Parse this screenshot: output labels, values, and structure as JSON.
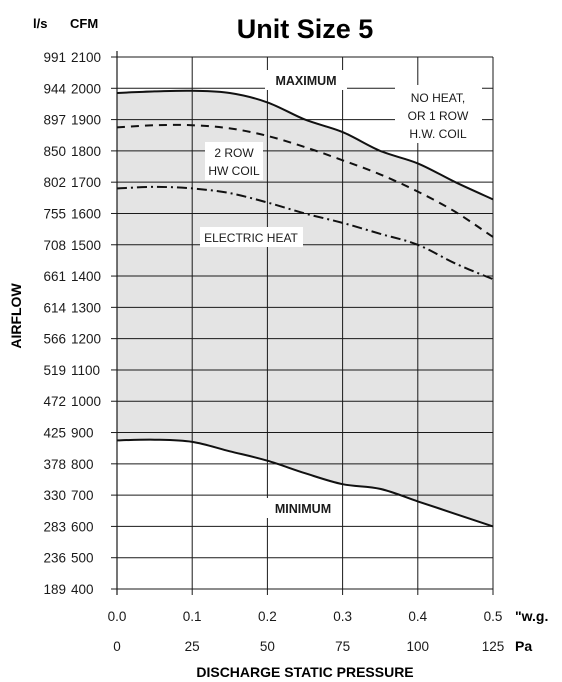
{
  "chart_data": {
    "type": "area",
    "title": "Unit Size 5",
    "ylabel": "AIRFLOW",
    "xlabel": "DISCHARGE STATIC PRESSURE",
    "y_unit_left": "l/s",
    "y_unit_right": "CFM",
    "x_unit_primary": "\"w.g.",
    "x_unit_secondary": "Pa",
    "xlim": [
      0,
      0.5
    ],
    "ylim": [
      400,
      2100
    ],
    "x_ticks_wg": [
      "0.0",
      "0.1",
      "0.2",
      "0.3",
      "0.4",
      "0.5"
    ],
    "x_ticks_pa": [
      "0",
      "25",
      "50",
      "75",
      "100",
      "125"
    ],
    "y_ticks_cfm": [
      "2100",
      "2000",
      "1900",
      "1800",
      "1700",
      "1600",
      "1500",
      "1400",
      "1300",
      "1200",
      "1100",
      "1000",
      "900",
      "800",
      "700",
      "600",
      "500",
      "400"
    ],
    "y_ticks_ls": [
      "991",
      "944",
      "897",
      "850",
      "802",
      "755",
      "708",
      "661",
      "614",
      "566",
      "519",
      "472",
      "425",
      "378",
      "330",
      "283",
      "236",
      "189"
    ],
    "series": [
      {
        "name": "MAXIMUM",
        "style": "solid",
        "x": [
          0.0,
          0.05,
          0.1,
          0.15,
          0.2,
          0.25,
          0.3,
          0.35,
          0.4,
          0.45,
          0.5
        ],
        "y": [
          1985,
          1990,
          1992,
          1985,
          1955,
          1900,
          1860,
          1800,
          1760,
          1700,
          1645
        ]
      },
      {
        "name": "NO HEAT, OR 1 ROW H.W. COIL",
        "style": "solid",
        "x": [
          0.0,
          0.05,
          0.1,
          0.15,
          0.2,
          0.25,
          0.3,
          0.35,
          0.4,
          0.45,
          0.5
        ],
        "y": [
          1985,
          1990,
          1992,
          1985,
          1955,
          1900,
          1860,
          1800,
          1760,
          1700,
          1645
        ]
      },
      {
        "name": "2 ROW HW COIL",
        "style": "dashed",
        "x": [
          0.0,
          0.05,
          0.1,
          0.15,
          0.2,
          0.25,
          0.3,
          0.35,
          0.4,
          0.45,
          0.5
        ],
        "y": [
          1875,
          1882,
          1882,
          1872,
          1848,
          1812,
          1770,
          1725,
          1670,
          1605,
          1525
        ]
      },
      {
        "name": "ELECTRIC HEAT",
        "style": "dashdot",
        "x": [
          0.0,
          0.05,
          0.1,
          0.15,
          0.2,
          0.25,
          0.3,
          0.35,
          0.4,
          0.45,
          0.5
        ],
        "y": [
          1680,
          1685,
          1680,
          1665,
          1635,
          1600,
          1570,
          1535,
          1500,
          1440,
          1390
        ]
      },
      {
        "name": "MINIMUM",
        "style": "solid",
        "x": [
          0.0,
          0.05,
          0.1,
          0.15,
          0.2,
          0.25,
          0.3,
          0.35,
          0.4,
          0.45,
          0.5
        ],
        "y": [
          875,
          877,
          870,
          840,
          810,
          770,
          735,
          720,
          680,
          640,
          600
        ]
      }
    ],
    "annotations": [
      "MAXIMUM",
      "NO HEAT,",
      "OR 1 ROW",
      "H.W. COIL",
      "2 ROW",
      "HW COIL",
      "ELECTRIC HEAT",
      "MINIMUM"
    ],
    "fill_color": "#e4e4e4",
    "grid": true
  }
}
